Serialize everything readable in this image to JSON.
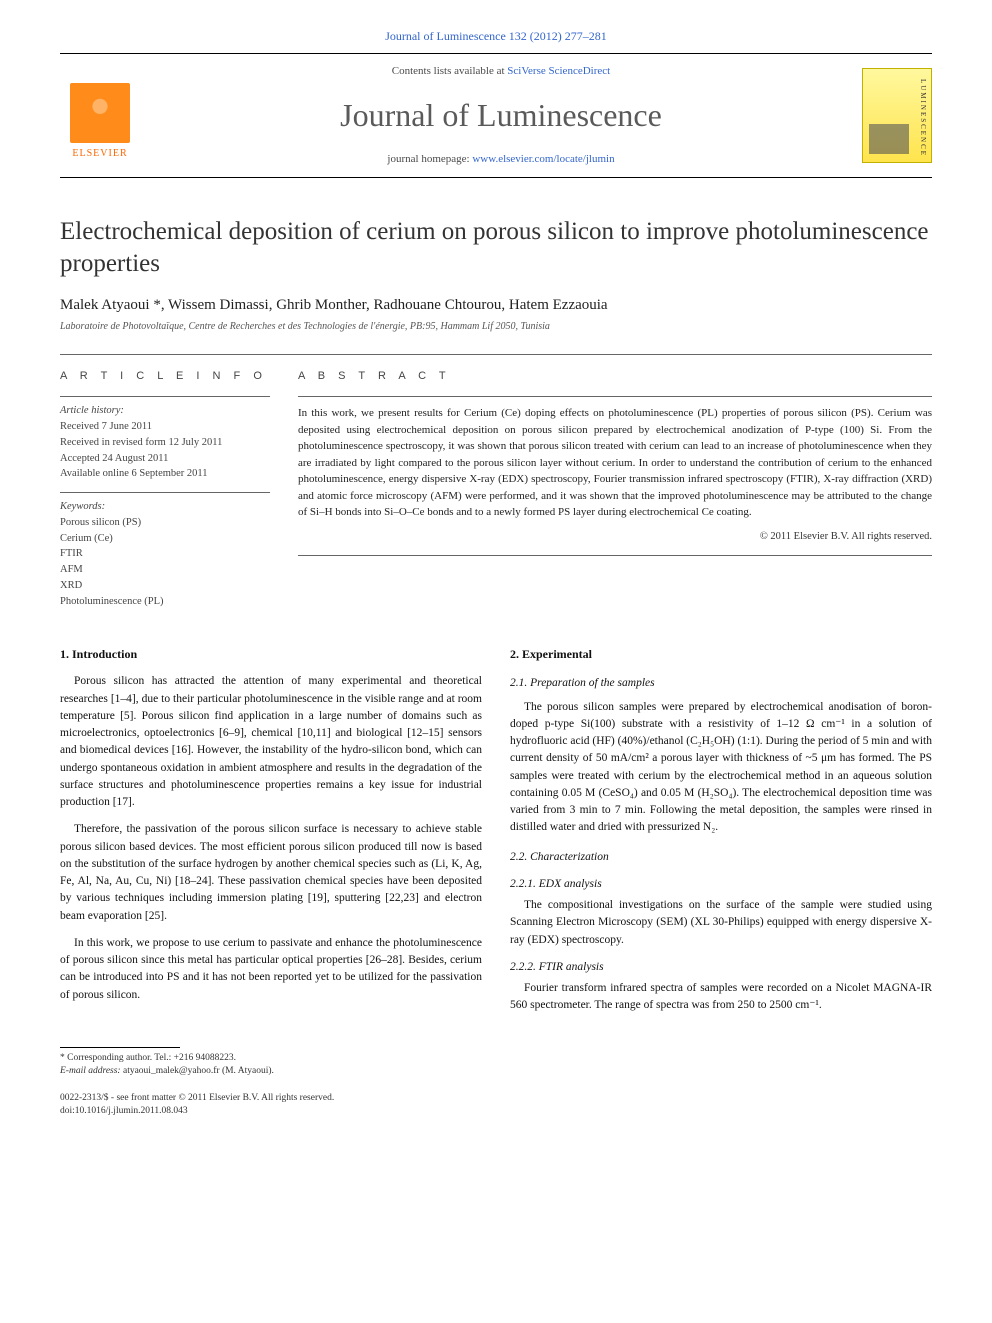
{
  "header": {
    "top_link": "Journal of Luminescence 132 (2012) 277–281",
    "contents_prefix": "Contents lists available at ",
    "contents_link": "SciVerse ScienceDirect",
    "journal_name": "Journal of Luminescence",
    "homepage_prefix": "journal homepage: ",
    "homepage_url": "www.elsevier.com/locate/jlumin",
    "publisher": "ELSEVIER"
  },
  "article": {
    "title": "Electrochemical deposition of cerium on porous silicon to improve photoluminescence properties",
    "authors": "Malek Atyaoui *, Wissem Dimassi, Ghrib Monther, Radhouane Chtourou, Hatem Ezzaouia",
    "affiliation": "Laboratoire de Photovoltaïque, Centre de Recherches et des Technologies de l'énergie, PB:95, Hammam Lif 2050, Tunisia"
  },
  "info": {
    "heading": "A R T I C L E   I N F O",
    "history_label": "Article history:",
    "received": "Received 7 June 2011",
    "revised": "Received in revised form 12 July 2011",
    "accepted": "Accepted 24 August 2011",
    "online": "Available online 6 September 2011",
    "keywords_label": "Keywords:",
    "kw1": "Porous silicon (PS)",
    "kw2": "Cerium (Ce)",
    "kw3": "FTIR",
    "kw4": "AFM",
    "kw5": "XRD",
    "kw6": "Photoluminescence (PL)"
  },
  "abstract": {
    "heading": "A B S T R A C T",
    "text": "In this work, we present results for Cerium (Ce) doping effects on photoluminescence (PL) properties of porous silicon (PS). Cerium was deposited using electrochemical deposition on porous silicon prepared by electrochemical anodization of P-type (100) Si. From the photoluminescence spectroscopy, it was shown that porous silicon treated with cerium can lead to an increase of photoluminescence when they are irradiated by light compared to the porous silicon layer without cerium. In order to understand the contribution of cerium to the enhanced photoluminescence, energy dispersive X-ray (EDX) spectroscopy, Fourier transmission infrared spectroscopy (FTIR), X-ray diffraction (XRD) and atomic force microscopy (AFM) were performed, and it was shown that the improved photoluminescence may be attributed to the change of Si–H bonds into Si–O–Ce bonds and to a newly formed PS layer during electrochemical Ce coating.",
    "copyright": "© 2011 Elsevier B.V. All rights reserved."
  },
  "body": {
    "s1_heading": "1.  Introduction",
    "s1_p1": "Porous silicon has attracted the attention of many experimental and theoretical researches [1–4], due to their particular photoluminescence in the visible range and at room temperature [5]. Porous silicon find application in a large number of domains such as microelectronics, optoelectronics [6–9], chemical [10,11] and biological [12–15] sensors and biomedical devices [16]. However, the instability of the hydro-silicon bond, which can undergo spontaneous oxidation in ambient atmosphere and results in the degradation of the surface structures and photoluminescence properties remains a key issue for industrial production [17].",
    "s1_p2": "Therefore, the passivation of the porous silicon surface is necessary to achieve stable porous silicon based devices. The most efficient porous silicon produced till now is based on the substitution of the surface hydrogen by another chemical species such as (Li, K, Ag, Fe, Al, Na, Au, Cu, Ni) [18–24]. These passivation chemical species have been deposited by various techniques including immersion plating [19], sputtering [22,23] and electron beam evaporation [25].",
    "s1_p3": "In this work, we propose to use cerium to passivate and enhance the photoluminescence of porous silicon since this metal has particular optical properties [26–28]. Besides, cerium can be introduced into PS and it has not been reported yet to be utilized for the passivation of porous silicon.",
    "s2_heading": "2.  Experimental",
    "s21_heading": "2.1. Preparation of the samples",
    "s21_p1": "The porous silicon samples were prepared by electrochemical anodisation of boron-doped p-type Si(100) substrate with a resistivity of 1–12 Ω cm⁻¹ in a solution of hydrofluoric acid (HF) (40%)/ethanol (C₂H₅OH) (1:1). During the period of 5 min and with current density of 50 mA/cm² a porous layer with thickness of ~5 μm has formed. The PS samples were treated with cerium by the electrochemical method in an aqueous solution containing 0.05 M (CeSO₄) and 0.05 M (H₂SO₄). The electrochemical deposition time was varied from 3 min to 7 min. Following the metal deposition, the samples were rinsed in distilled water and dried with pressurized N₂.",
    "s22_heading": "2.2. Characterization",
    "s221_heading": "2.2.1. EDX analysis",
    "s221_p1": "The compositional investigations on the surface of the sample were studied using Scanning Electron Microscopy (SEM) (XL 30-Philips) equipped with energy dispersive X-ray (EDX) spectroscopy.",
    "s222_heading": "2.2.2. FTIR analysis",
    "s222_p1": "Fourier transform infrared spectra of samples were recorded on a Nicolet MAGNA-IR 560 spectrometer. The range of spectra was from 250 to 2500 cm⁻¹."
  },
  "footnote": {
    "corr": "* Corresponding author. Tel.: +216 94088223.",
    "email_label": "E-mail address:",
    "email": "atyaoui_malek@yahoo.fr (M. Atyaoui)."
  },
  "footer": {
    "issn": "0022-2313/$ - see front matter © 2011 Elsevier B.V. All rights reserved.",
    "doi": "doi:10.1016/j.jlumin.2011.08.043"
  },
  "colors": {
    "link": "#3366cc",
    "elsevier_orange": "#ff8c1a",
    "text": "#000000",
    "muted": "#555555"
  }
}
